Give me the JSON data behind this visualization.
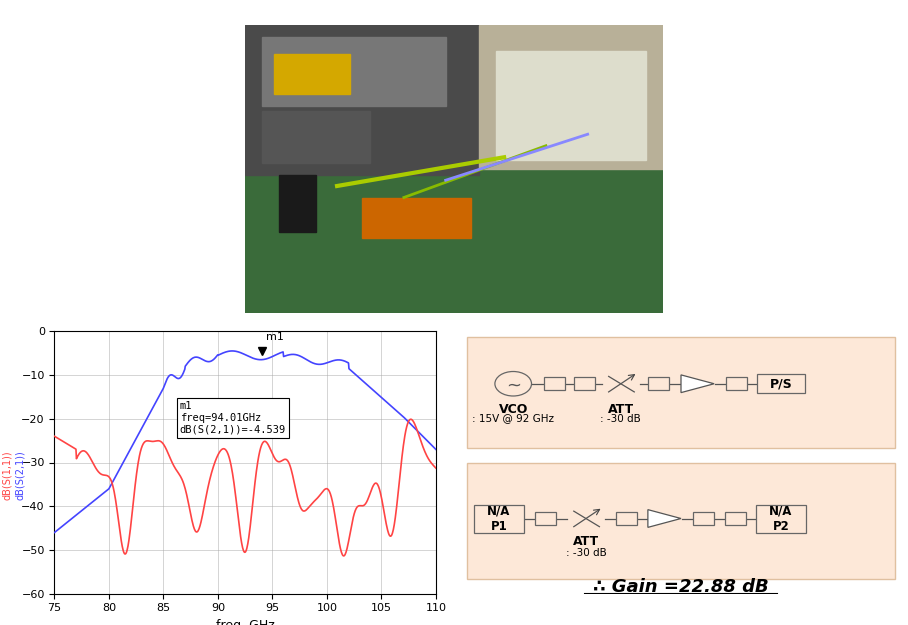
{
  "bg_color": "#ffffff",
  "graph": {
    "xlim": [
      75,
      110
    ],
    "ylim": [
      -60,
      0
    ],
    "xticks": [
      75,
      80,
      85,
      90,
      95,
      100,
      105,
      110
    ],
    "yticks": [
      0,
      -10,
      -20,
      -30,
      -40,
      -50,
      -60
    ],
    "xlabel": "freq, GHz",
    "ylabel_red": "dB(S(1,1))",
    "ylabel_blue": "dB(S(2,1))",
    "blue_color": "#4444ff",
    "red_color": "#ff4444",
    "marker_freq": 94.01,
    "marker_val": -4.539,
    "annotation_text": "m1\nfreq=94.01GHz\ndB(S(2,1))=-4.539",
    "grid_color": "#aaaaaa"
  },
  "diagram": {
    "bg_color": "#fde8d8",
    "gain_text": "∴ Gain =22.88 dB",
    "vco_label": "VCO",
    "vco_sub": ": 15V @ 92 GHz",
    "att_label": "ATT",
    "att_sub": ": -30 dB",
    "ps_label": "P/S",
    "na_p1_label": "N/A\nP1",
    "na_p2_label": "N/A\nP2"
  }
}
